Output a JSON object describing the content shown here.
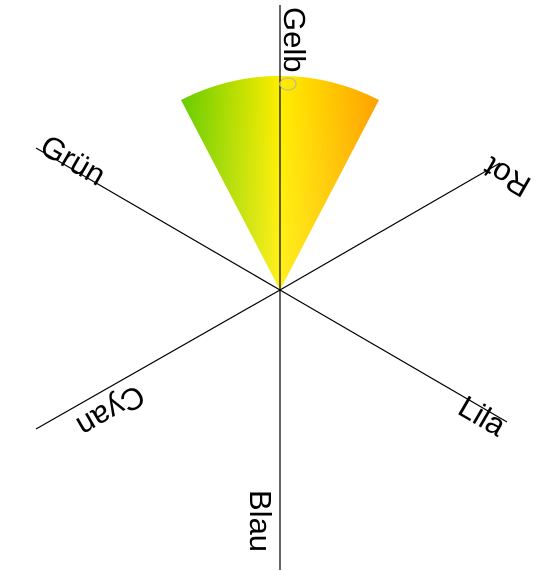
{
  "diagram": {
    "labels": {
      "gelb": "Gelb",
      "rot": "Rot",
      "lila": "Lila",
      "blau": "Blau",
      "cyan": "Cyan",
      "gruen": "Grün"
    },
    "sector": {
      "start_color": "#66cc00",
      "mid_color": "#ffee00",
      "end_color": "#ffa000"
    }
  }
}
